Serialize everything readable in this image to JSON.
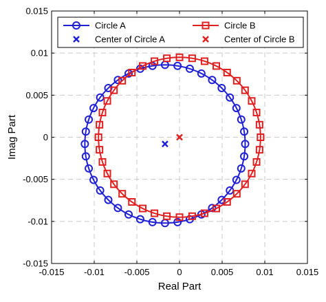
{
  "chart_data": {
    "type": "line",
    "title": "",
    "xlabel": "Real Part",
    "ylabel": "Imag Part",
    "xlim": [
      -0.015,
      0.015
    ],
    "ylim": [
      -0.015,
      0.015
    ],
    "xticks": [
      -0.015,
      -0.01,
      -0.005,
      0,
      0.005,
      0.01,
      0.015
    ],
    "yticks": [
      -0.015,
      -0.01,
      -0.005,
      0,
      0.005,
      0.01,
      0.015
    ],
    "xtick_labels": [
      "-0.015",
      "-0.01",
      "-0.005",
      "0",
      "0.005",
      "0.01",
      "0.015"
    ],
    "ytick_labels": [
      "-0.015",
      "-0.01",
      "-0.005",
      "0",
      "0.005",
      "0.01",
      "0.015"
    ],
    "grid": true,
    "legend_position": "top",
    "series": [
      {
        "name": "Circle A",
        "color": "#1f1fd6",
        "marker": "circle",
        "kind": "circle",
        "center": [
          -0.0017,
          -0.0008
        ],
        "radius": 0.0094,
        "marker_count": 40
      },
      {
        "name": "Circle B",
        "color": "#e02020",
        "marker": "square",
        "kind": "circle",
        "center": [
          0.0,
          0.0
        ],
        "radius": 0.0095,
        "marker_count": 40
      },
      {
        "name": "Center of Circle A",
        "color": "#1f1fd6",
        "marker": "x",
        "kind": "point",
        "x": [
          -0.0017
        ],
        "y": [
          -0.0008
        ]
      },
      {
        "name": "Center of Circle B",
        "color": "#e02020",
        "marker": "x",
        "kind": "point",
        "x": [
          0.0
        ],
        "y": [
          0.0
        ]
      }
    ]
  }
}
